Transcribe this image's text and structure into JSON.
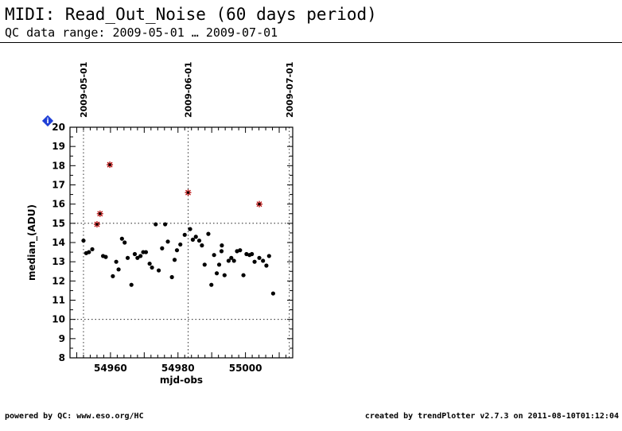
{
  "header": {
    "title": "MIDI: Read_Out_Noise (60 days period)",
    "subtitle": "QC data range: 2009-05-01 … 2009-07-01"
  },
  "footer": {
    "left": "powered by QC: www.eso.org/HC",
    "right": "created by trendPlotter v2.7.3 on 2011-08-10T01:12:04"
  },
  "info_badge": {
    "label": "i",
    "color": "#1f3fd6"
  },
  "chart_data": {
    "type": "scatter",
    "xlabel": "mjd-obs",
    "ylabel": "median_(ADU)",
    "xlim": [
      54948,
      55014
    ],
    "ylim": [
      8,
      20
    ],
    "x_ticks": [
      54960,
      54980,
      55000
    ],
    "y_ticks": [
      8,
      9,
      10,
      11,
      12,
      13,
      14,
      15,
      16,
      17,
      18,
      19,
      20
    ],
    "date_markers": [
      {
        "mjd": 54952,
        "label": "2009-05-01"
      },
      {
        "mjd": 54983,
        "label": "2009-06-01"
      },
      {
        "mjd": 55013,
        "label": "2009-07-01"
      }
    ],
    "thresholds": [
      10,
      15
    ],
    "grid": false,
    "colors": {
      "normal": "#000000",
      "outlier": "#b40000"
    },
    "series": [
      {
        "kind": "normal",
        "points": [
          [
            54952.0,
            14.1
          ],
          [
            54952.8,
            13.45
          ],
          [
            54953.6,
            13.5
          ],
          [
            54954.6,
            13.65
          ],
          [
            54957.8,
            13.3
          ],
          [
            54958.6,
            13.25
          ],
          [
            54960.7,
            12.25
          ],
          [
            54961.7,
            13.0
          ],
          [
            54962.4,
            12.6
          ],
          [
            54963.4,
            14.2
          ],
          [
            54964.2,
            14.0
          ],
          [
            54965.1,
            13.2
          ],
          [
            54966.2,
            11.8
          ],
          [
            54967.2,
            13.4
          ],
          [
            54968.0,
            13.2
          ],
          [
            54968.9,
            13.3
          ],
          [
            54969.7,
            13.5
          ],
          [
            54970.5,
            13.5
          ],
          [
            54971.6,
            12.9
          ],
          [
            54972.3,
            12.7
          ],
          [
            54973.4,
            14.95
          ],
          [
            54974.3,
            12.55
          ],
          [
            54975.3,
            13.7
          ],
          [
            54976.2,
            14.95
          ],
          [
            54977.0,
            14.05
          ],
          [
            54978.2,
            12.2
          ],
          [
            54979.0,
            13.1
          ],
          [
            54979.7,
            13.6
          ],
          [
            54980.7,
            13.9
          ],
          [
            54982.0,
            14.4
          ],
          [
            54983.6,
            14.7
          ],
          [
            54984.4,
            14.15
          ],
          [
            54985.3,
            14.3
          ],
          [
            54986.3,
            14.1
          ],
          [
            54987.1,
            13.85
          ],
          [
            54987.9,
            12.85
          ],
          [
            54989.0,
            14.45
          ],
          [
            54989.9,
            11.8
          ],
          [
            54990.7,
            13.35
          ],
          [
            54991.5,
            12.4
          ],
          [
            54992.2,
            12.85
          ],
          [
            54992.9,
            13.55
          ],
          [
            54993.0,
            13.85
          ],
          [
            54993.8,
            12.3
          ],
          [
            54995.0,
            13.05
          ],
          [
            54995.8,
            13.2
          ],
          [
            54996.6,
            13.05
          ],
          [
            54997.5,
            13.55
          ],
          [
            54998.4,
            13.6
          ],
          [
            54999.4,
            12.3
          ],
          [
            55000.3,
            13.4
          ],
          [
            55001.2,
            13.35
          ],
          [
            55001.9,
            13.4
          ],
          [
            55002.7,
            13.0
          ],
          [
            55004.1,
            13.2
          ],
          [
            55005.2,
            13.05
          ],
          [
            55006.2,
            12.8
          ],
          [
            55007.0,
            13.3
          ],
          [
            55008.2,
            11.35
          ]
        ]
      },
      {
        "kind": "outlier",
        "points": [
          [
            54956.0,
            14.95
          ],
          [
            54956.9,
            15.5
          ],
          [
            54959.8,
            18.05
          ],
          [
            54983.0,
            16.6
          ],
          [
            55004.1,
            16.0
          ]
        ]
      }
    ]
  }
}
